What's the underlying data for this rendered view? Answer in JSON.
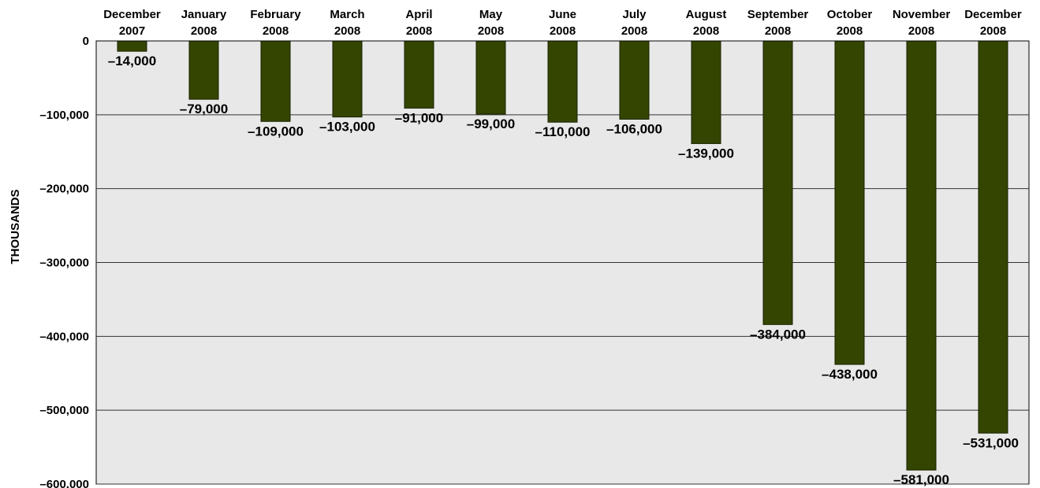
{
  "chart_data": {
    "type": "bar",
    "title": "",
    "xlabel": "",
    "ylabel": "THOUSANDS",
    "categories": [
      [
        "December",
        "2007"
      ],
      [
        "January",
        "2008"
      ],
      [
        "February",
        "2008"
      ],
      [
        "March",
        "2008"
      ],
      [
        "April",
        "2008"
      ],
      [
        "May",
        "2008"
      ],
      [
        "June",
        "2008"
      ],
      [
        "July",
        "2008"
      ],
      [
        "August",
        "2008"
      ],
      [
        "September",
        "2008"
      ],
      [
        "October",
        "2008"
      ],
      [
        "November",
        "2008"
      ],
      [
        "December",
        "2008"
      ]
    ],
    "values": [
      -14000,
      -79000,
      -109000,
      -103000,
      -91000,
      -99000,
      -110000,
      -106000,
      -139000,
      -384000,
      -438000,
      -581000,
      -531000
    ],
    "data_labels": [
      "–14,000",
      "–79,000",
      "–109,000",
      "–103,000",
      "–91,000",
      "–99,000",
      "–110,000",
      "–106,000",
      "–139,000",
      "–384,000",
      "–438,000",
      "–581,000",
      "–531,000"
    ],
    "yticks": [
      0,
      -100000,
      -200000,
      -300000,
      -400000,
      -500000,
      -600000
    ],
    "ytick_labels": [
      "0",
      "–100,000",
      "–200,000",
      "–300,000",
      "–400,000",
      "–500,000",
      "–600,000"
    ],
    "ylim": [
      -600000,
      0
    ],
    "grid": true,
    "colors": {
      "bar": "#334500",
      "bar_edge": "#1a2200",
      "plot_background": "#e8e8e8",
      "grid": "#333333"
    }
  }
}
